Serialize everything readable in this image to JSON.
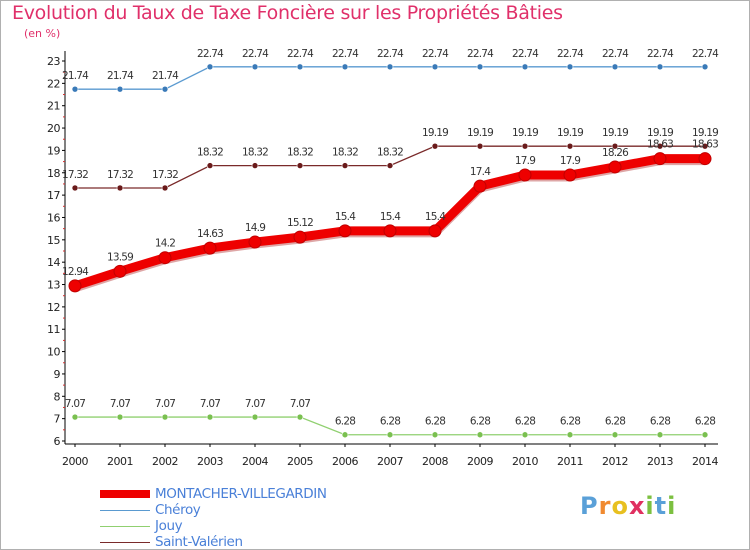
{
  "title": "Evolution du Taux de Taxe Foncière sur les Propriétés Bâties",
  "unit_label": "(en %)",
  "logo": {
    "letters": [
      "P",
      "r",
      "o",
      "x",
      "i",
      "t",
      "i"
    ],
    "colors": [
      "#5aa0d8",
      "#f08a30",
      "#e8c020",
      "#e03060",
      "#7cc040",
      "#5aa0d8",
      "#7cc040"
    ]
  },
  "chart_data": {
    "type": "line",
    "title": "Evolution du Taux de Taxe Foncière sur les Propriétés Bâties",
    "ylabel": "(en %)",
    "xlabel": "",
    "ylim": [
      6,
      23
    ],
    "yticks": [
      6,
      7,
      8,
      9,
      10,
      11,
      12,
      13,
      14,
      15,
      16,
      17,
      18,
      19,
      20,
      21,
      22,
      23
    ],
    "categories": [
      "2000",
      "2001",
      "2002",
      "2003",
      "2004",
      "2005",
      "2006",
      "2007",
      "2008",
      "2009",
      "2010",
      "2011",
      "2012",
      "2013",
      "2014"
    ],
    "grid": false,
    "legend": "bottom-left",
    "series": [
      {
        "name": "Chéroy",
        "color": "#5a9ad0",
        "marker": "#3a7ab8",
        "thick": false,
        "values": [
          21.74,
          21.74,
          21.74,
          22.74,
          22.74,
          22.74,
          22.74,
          22.74,
          22.74,
          22.74,
          22.74,
          22.74,
          22.74,
          22.74,
          22.74
        ],
        "labels": [
          "21.74",
          "21.74",
          "21.74",
          "22.74",
          "22.74",
          "22.74",
          "22.74",
          "22.74",
          "22.74",
          "22.74",
          "22.74",
          "22.74",
          "22.74",
          "22.74",
          "22.74"
        ]
      },
      {
        "name": "Saint-Valérien",
        "color": "#7a2a2a",
        "marker": "#6a1a1a",
        "thick": false,
        "values": [
          17.32,
          17.32,
          17.32,
          18.32,
          18.32,
          18.32,
          18.32,
          18.32,
          19.19,
          19.19,
          19.19,
          19.19,
          19.19,
          19.19,
          19.19
        ],
        "labels": [
          "17.32",
          "17.32",
          "17.32",
          "18.32",
          "18.32",
          "18.32",
          "18.32",
          "18.32",
          "19.19",
          "19.19",
          "19.19",
          "19.19",
          "19.19",
          "19.19",
          "19.19"
        ]
      },
      {
        "name": "Jouy",
        "color": "#90d070",
        "marker": "#7ac050",
        "thick": false,
        "values": [
          7.07,
          7.07,
          7.07,
          7.07,
          7.07,
          7.07,
          6.28,
          6.28,
          6.28,
          6.28,
          6.28,
          6.28,
          6.28,
          6.28,
          6.28
        ],
        "labels": [
          "7.07",
          "7.07",
          "7.07",
          "7.07",
          "7.07",
          "7.07",
          "6.28",
          "6.28",
          "6.28",
          "6.28",
          "6.28",
          "6.28",
          "6.28",
          "6.28",
          "6.28"
        ]
      },
      {
        "name": "MONTACHER-VILLEGARDIN",
        "color": "#ee0000",
        "marker": "#ee0000",
        "thick": true,
        "values": [
          12.94,
          13.59,
          14.2,
          14.63,
          14.9,
          15.12,
          15.4,
          15.4,
          15.4,
          17.4,
          17.9,
          17.9,
          18.26,
          18.63,
          18.63
        ],
        "labels": [
          "12.94",
          "13.59",
          "14.2",
          "14.63",
          "14.9",
          "15.12",
          "15.4",
          "15.4",
          "15.4",
          "17.4",
          "17.9",
          "17.9",
          "18.26",
          "18.63",
          "18.63"
        ]
      }
    ],
    "legend_order": [
      "MONTACHER-VILLEGARDIN",
      "Chéroy",
      "Jouy",
      "Saint-Valérien"
    ]
  }
}
